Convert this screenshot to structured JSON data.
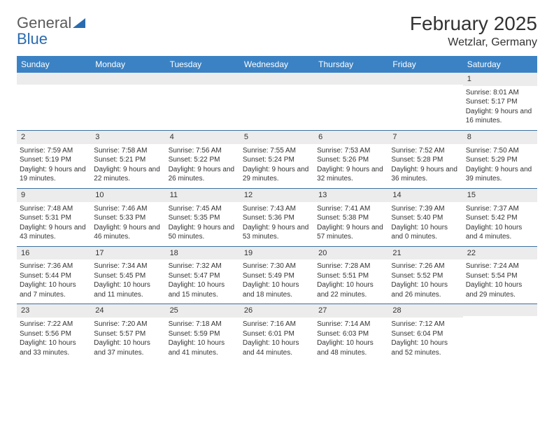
{
  "logo": {
    "word1": "General",
    "word2": "Blue"
  },
  "title": "February 2025",
  "location": "Wetzlar, Germany",
  "colors": {
    "header_bg": "#3b82c4",
    "header_text": "#ffffff",
    "daynum_bg": "#ececec",
    "week_border": "#3b6fa0",
    "text": "#333333",
    "logo_gray": "#5a5a5a",
    "logo_blue": "#2a6bb0"
  },
  "day_labels": [
    "Sunday",
    "Monday",
    "Tuesday",
    "Wednesday",
    "Thursday",
    "Friday",
    "Saturday"
  ],
  "weeks": [
    [
      {
        "day": "",
        "lines": []
      },
      {
        "day": "",
        "lines": []
      },
      {
        "day": "",
        "lines": []
      },
      {
        "day": "",
        "lines": []
      },
      {
        "day": "",
        "lines": []
      },
      {
        "day": "",
        "lines": []
      },
      {
        "day": "1",
        "lines": [
          "Sunrise: 8:01 AM",
          "Sunset: 5:17 PM",
          "Daylight: 9 hours and 16 minutes."
        ]
      }
    ],
    [
      {
        "day": "2",
        "lines": [
          "Sunrise: 7:59 AM",
          "Sunset: 5:19 PM",
          "Daylight: 9 hours and 19 minutes."
        ]
      },
      {
        "day": "3",
        "lines": [
          "Sunrise: 7:58 AM",
          "Sunset: 5:21 PM",
          "Daylight: 9 hours and 22 minutes."
        ]
      },
      {
        "day": "4",
        "lines": [
          "Sunrise: 7:56 AM",
          "Sunset: 5:22 PM",
          "Daylight: 9 hours and 26 minutes."
        ]
      },
      {
        "day": "5",
        "lines": [
          "Sunrise: 7:55 AM",
          "Sunset: 5:24 PM",
          "Daylight: 9 hours and 29 minutes."
        ]
      },
      {
        "day": "6",
        "lines": [
          "Sunrise: 7:53 AM",
          "Sunset: 5:26 PM",
          "Daylight: 9 hours and 32 minutes."
        ]
      },
      {
        "day": "7",
        "lines": [
          "Sunrise: 7:52 AM",
          "Sunset: 5:28 PM",
          "Daylight: 9 hours and 36 minutes."
        ]
      },
      {
        "day": "8",
        "lines": [
          "Sunrise: 7:50 AM",
          "Sunset: 5:29 PM",
          "Daylight: 9 hours and 39 minutes."
        ]
      }
    ],
    [
      {
        "day": "9",
        "lines": [
          "Sunrise: 7:48 AM",
          "Sunset: 5:31 PM",
          "Daylight: 9 hours and 43 minutes."
        ]
      },
      {
        "day": "10",
        "lines": [
          "Sunrise: 7:46 AM",
          "Sunset: 5:33 PM",
          "Daylight: 9 hours and 46 minutes."
        ]
      },
      {
        "day": "11",
        "lines": [
          "Sunrise: 7:45 AM",
          "Sunset: 5:35 PM",
          "Daylight: 9 hours and 50 minutes."
        ]
      },
      {
        "day": "12",
        "lines": [
          "Sunrise: 7:43 AM",
          "Sunset: 5:36 PM",
          "Daylight: 9 hours and 53 minutes."
        ]
      },
      {
        "day": "13",
        "lines": [
          "Sunrise: 7:41 AM",
          "Sunset: 5:38 PM",
          "Daylight: 9 hours and 57 minutes."
        ]
      },
      {
        "day": "14",
        "lines": [
          "Sunrise: 7:39 AM",
          "Sunset: 5:40 PM",
          "Daylight: 10 hours and 0 minutes."
        ]
      },
      {
        "day": "15",
        "lines": [
          "Sunrise: 7:37 AM",
          "Sunset: 5:42 PM",
          "Daylight: 10 hours and 4 minutes."
        ]
      }
    ],
    [
      {
        "day": "16",
        "lines": [
          "Sunrise: 7:36 AM",
          "Sunset: 5:44 PM",
          "Daylight: 10 hours and 7 minutes."
        ]
      },
      {
        "day": "17",
        "lines": [
          "Sunrise: 7:34 AM",
          "Sunset: 5:45 PM",
          "Daylight: 10 hours and 11 minutes."
        ]
      },
      {
        "day": "18",
        "lines": [
          "Sunrise: 7:32 AM",
          "Sunset: 5:47 PM",
          "Daylight: 10 hours and 15 minutes."
        ]
      },
      {
        "day": "19",
        "lines": [
          "Sunrise: 7:30 AM",
          "Sunset: 5:49 PM",
          "Daylight: 10 hours and 18 minutes."
        ]
      },
      {
        "day": "20",
        "lines": [
          "Sunrise: 7:28 AM",
          "Sunset: 5:51 PM",
          "Daylight: 10 hours and 22 minutes."
        ]
      },
      {
        "day": "21",
        "lines": [
          "Sunrise: 7:26 AM",
          "Sunset: 5:52 PM",
          "Daylight: 10 hours and 26 minutes."
        ]
      },
      {
        "day": "22",
        "lines": [
          "Sunrise: 7:24 AM",
          "Sunset: 5:54 PM",
          "Daylight: 10 hours and 29 minutes."
        ]
      }
    ],
    [
      {
        "day": "23",
        "lines": [
          "Sunrise: 7:22 AM",
          "Sunset: 5:56 PM",
          "Daylight: 10 hours and 33 minutes."
        ]
      },
      {
        "day": "24",
        "lines": [
          "Sunrise: 7:20 AM",
          "Sunset: 5:57 PM",
          "Daylight: 10 hours and 37 minutes."
        ]
      },
      {
        "day": "25",
        "lines": [
          "Sunrise: 7:18 AM",
          "Sunset: 5:59 PM",
          "Daylight: 10 hours and 41 minutes."
        ]
      },
      {
        "day": "26",
        "lines": [
          "Sunrise: 7:16 AM",
          "Sunset: 6:01 PM",
          "Daylight: 10 hours and 44 minutes."
        ]
      },
      {
        "day": "27",
        "lines": [
          "Sunrise: 7:14 AM",
          "Sunset: 6:03 PM",
          "Daylight: 10 hours and 48 minutes."
        ]
      },
      {
        "day": "28",
        "lines": [
          "Sunrise: 7:12 AM",
          "Sunset: 6:04 PM",
          "Daylight: 10 hours and 52 minutes."
        ]
      },
      {
        "day": "",
        "lines": []
      }
    ]
  ]
}
